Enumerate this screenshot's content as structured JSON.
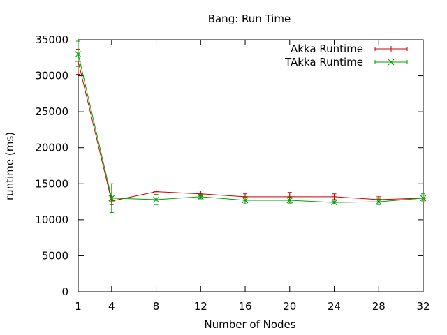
{
  "chart_data": {
    "type": "line",
    "title": "Bang: Run Time",
    "xlabel": "Number of Nodes",
    "ylabel": "runtime (ms)",
    "x": [
      1,
      4,
      8,
      12,
      16,
      20,
      24,
      28,
      32
    ],
    "x_ticks": [
      1,
      4,
      8,
      12,
      16,
      20,
      24,
      28,
      32
    ],
    "y_ticks": [
      0,
      5000,
      10000,
      15000,
      20000,
      25000,
      30000,
      35000
    ],
    "xlim": [
      1,
      32
    ],
    "ylim": [
      0,
      35000
    ],
    "grid": false,
    "legend_position": "top-right",
    "series": [
      {
        "name": "Akka Runtime",
        "color": "#cc0000",
        "marker": "plus",
        "values": [
          32000,
          12600,
          13900,
          13600,
          13200,
          13200,
          13200,
          12800,
          13000
        ],
        "err_low": [
          30200,
          12100,
          13500,
          13300,
          12700,
          12700,
          12800,
          12500,
          12700
        ],
        "err_high": [
          33700,
          13200,
          14400,
          14000,
          13600,
          13800,
          13600,
          13200,
          13400
        ]
      },
      {
        "name": "TAkka Runtime",
        "color": "#00a000",
        "marker": "cross",
        "values": [
          33000,
          13000,
          12800,
          13200,
          12700,
          12700,
          12400,
          12500,
          13000
        ],
        "err_low": [
          31300,
          11000,
          12100,
          12900,
          12200,
          12300,
          12200,
          12100,
          12500
        ],
        "err_high": [
          34800,
          15000,
          13500,
          13500,
          13100,
          13100,
          12600,
          12900,
          13600
        ]
      }
    ]
  }
}
